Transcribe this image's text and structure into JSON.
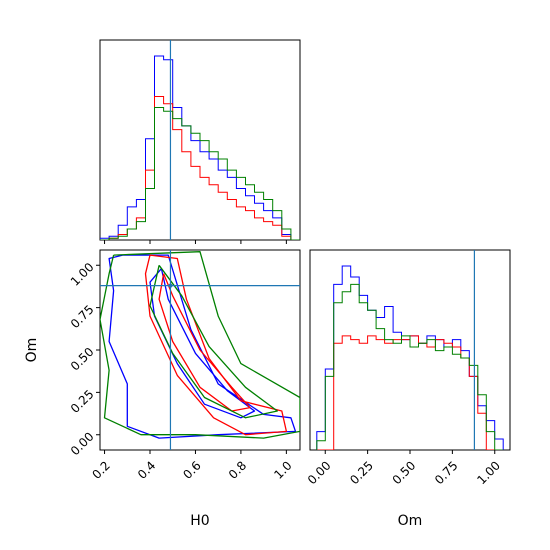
{
  "chart_data": {
    "type": "corner",
    "axes": [
      {
        "name": "H0",
        "label": "H0",
        "range": [
          0.18,
          1.06
        ],
        "ticks": [
          0.2,
          0.4,
          0.6,
          0.8,
          1.0
        ],
        "tick_labels": [
          "0.2",
          "0.4",
          "0.6",
          "0.8",
          "1.0"
        ]
      },
      {
        "name": "Om",
        "label": "Om",
        "range": [
          -0.09,
          1.09
        ],
        "ticks": [
          0.0,
          0.25,
          0.5,
          0.75,
          1.0
        ],
        "tick_labels": [
          "0.00",
          "0.25",
          "0.50",
          "0.75",
          "1.00"
        ]
      }
    ],
    "truth": {
      "H0": 0.49,
      "Om": 0.88,
      "color": "#1f77b4"
    },
    "series_colors": [
      "#0000ff",
      "#ff0000",
      "#008000"
    ],
    "hist_H0": {
      "bin_width": 0.04,
      "bins_start": [
        0.18,
        0.22,
        0.26,
        0.3,
        0.34,
        0.38,
        0.42,
        0.46,
        0.5,
        0.54,
        0.58,
        0.62,
        0.66,
        0.7,
        0.74,
        0.78,
        0.82,
        0.86,
        0.9,
        0.94,
        0.98,
        1.02
      ],
      "series": [
        {
          "color": "#0000ff",
          "values": [
            0.01,
            0.02,
            0.08,
            0.18,
            0.22,
            0.55,
            1.0,
            0.98,
            0.72,
            0.62,
            0.54,
            0.48,
            0.44,
            0.38,
            0.34,
            0.28,
            0.24,
            0.2,
            0.16,
            0.12,
            0.03,
            0.0
          ]
        },
        {
          "color": "#ff0000",
          "values": [
            0.0,
            0.01,
            0.03,
            0.06,
            0.12,
            0.38,
            0.78,
            0.74,
            0.6,
            0.48,
            0.4,
            0.34,
            0.3,
            0.26,
            0.22,
            0.18,
            0.16,
            0.12,
            0.1,
            0.08,
            0.02,
            0.0
          ]
        },
        {
          "color": "#008000",
          "values": [
            0.0,
            0.01,
            0.02,
            0.06,
            0.1,
            0.28,
            0.72,
            0.7,
            0.66,
            0.62,
            0.58,
            0.54,
            0.48,
            0.44,
            0.38,
            0.34,
            0.3,
            0.26,
            0.22,
            0.16,
            0.06,
            0.0
          ]
        }
      ]
    },
    "hist_Om": {
      "bin_width": 0.05,
      "bins_start": [
        -0.05,
        0.0,
        0.05,
        0.1,
        0.15,
        0.2,
        0.25,
        0.3,
        0.35,
        0.4,
        0.45,
        0.5,
        0.55,
        0.6,
        0.65,
        0.7,
        0.75,
        0.8,
        0.85,
        0.9,
        0.95,
        1.0
      ],
      "series": [
        {
          "color": "#0000ff",
          "values": [
            0.1,
            0.44,
            0.9,
            1.0,
            0.94,
            0.84,
            0.76,
            0.72,
            0.78,
            0.64,
            0.6,
            0.62,
            0.58,
            0.62,
            0.6,
            0.56,
            0.6,
            0.54,
            0.4,
            0.24,
            0.16,
            0.06
          ]
        },
        {
          "color": "#ff0000",
          "values": [
            0.0,
            0.0,
            0.58,
            0.62,
            0.6,
            0.58,
            0.62,
            0.6,
            0.58,
            0.6,
            0.6,
            0.62,
            0.58,
            0.56,
            0.6,
            0.58,
            0.56,
            0.5,
            0.4,
            0.2,
            0.0,
            0.0
          ]
        },
        {
          "color": "#008000",
          "values": [
            0.05,
            0.4,
            0.8,
            0.86,
            0.9,
            0.8,
            0.76,
            0.66,
            0.6,
            0.58,
            0.62,
            0.56,
            0.58,
            0.6,
            0.54,
            0.56,
            0.52,
            0.5,
            0.46,
            0.3,
            0.1,
            0.0
          ]
        }
      ]
    },
    "contours_H0_Om": [
      {
        "color": "#0000ff",
        "points": [
          [
            0.28,
            1.06
          ],
          [
            0.48,
            1.06
          ],
          [
            0.58,
            0.62
          ],
          [
            0.7,
            0.3
          ],
          [
            0.9,
            0.12
          ],
          [
            1.02,
            0.1
          ],
          [
            1.04,
            0.02
          ],
          [
            0.7,
            0.0
          ],
          [
            0.44,
            -0.02
          ],
          [
            0.3,
            0.05
          ],
          [
            0.3,
            0.3
          ],
          [
            0.22,
            0.55
          ],
          [
            0.24,
            0.85
          ],
          [
            0.22,
            1.04
          ],
          [
            0.28,
            1.06
          ]
        ]
      },
      {
        "color": "#0000ff",
        "points": [
          [
            0.45,
            0.98
          ],
          [
            0.48,
            0.8
          ],
          [
            0.6,
            0.48
          ],
          [
            0.74,
            0.26
          ],
          [
            0.86,
            0.14
          ],
          [
            0.8,
            0.1
          ],
          [
            0.64,
            0.18
          ],
          [
            0.52,
            0.42
          ],
          [
            0.42,
            0.7
          ],
          [
            0.4,
            0.9
          ],
          [
            0.45,
            0.98
          ]
        ]
      },
      {
        "color": "#ff0000",
        "points": [
          [
            0.4,
            1.06
          ],
          [
            0.52,
            1.04
          ],
          [
            0.56,
            0.8
          ],
          [
            0.66,
            0.45
          ],
          [
            0.8,
            0.2
          ],
          [
            0.98,
            0.14
          ],
          [
            1.0,
            0.02
          ],
          [
            0.82,
            0.0
          ],
          [
            0.68,
            0.1
          ],
          [
            0.52,
            0.35
          ],
          [
            0.4,
            0.7
          ],
          [
            0.38,
            0.95
          ],
          [
            0.4,
            1.06
          ]
        ]
      },
      {
        "color": "#ff0000",
        "points": [
          [
            0.46,
            0.95
          ],
          [
            0.5,
            0.82
          ],
          [
            0.62,
            0.5
          ],
          [
            0.76,
            0.28
          ],
          [
            0.84,
            0.16
          ],
          [
            0.76,
            0.14
          ],
          [
            0.62,
            0.28
          ],
          [
            0.5,
            0.55
          ],
          [
            0.44,
            0.8
          ],
          [
            0.46,
            0.95
          ]
        ]
      },
      {
        "color": "#008000",
        "points": [
          [
            0.24,
            1.06
          ],
          [
            0.62,
            1.08
          ],
          [
            0.7,
            0.7
          ],
          [
            0.8,
            0.42
          ],
          [
            1.06,
            0.22
          ],
          [
            1.06,
            0.02
          ],
          [
            0.9,
            -0.02
          ],
          [
            0.6,
            0.0
          ],
          [
            0.36,
            0.0
          ],
          [
            0.2,
            0.1
          ],
          [
            0.22,
            0.38
          ],
          [
            0.18,
            0.68
          ],
          [
            0.22,
            0.95
          ],
          [
            0.24,
            1.06
          ]
        ]
      },
      {
        "color": "#008000",
        "points": [
          [
            0.44,
            1.0
          ],
          [
            0.54,
            0.82
          ],
          [
            0.66,
            0.52
          ],
          [
            0.82,
            0.28
          ],
          [
            0.96,
            0.14
          ],
          [
            0.82,
            0.1
          ],
          [
            0.64,
            0.22
          ],
          [
            0.5,
            0.48
          ],
          [
            0.4,
            0.76
          ],
          [
            0.44,
            1.0
          ]
        ]
      }
    ]
  }
}
